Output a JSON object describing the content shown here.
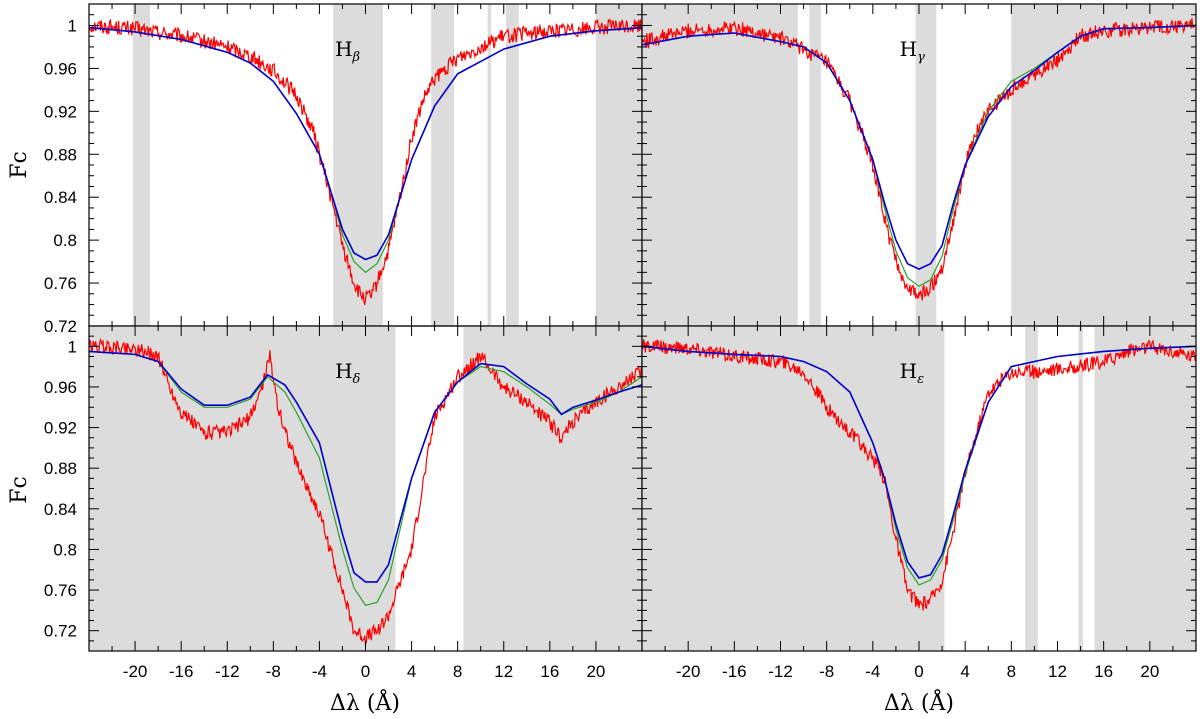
{
  "chart_data": [
    {
      "type": "line",
      "panel": "top-left",
      "label": "H",
      "label_sub": "β",
      "xlim": [
        -24,
        24
      ],
      "ylim": [
        0.72,
        1.02
      ],
      "shaded": [
        [
          -20.2,
          -18.7
        ],
        [
          -2.8,
          1.5
        ],
        [
          5.7,
          7.7
        ],
        [
          10.6,
          10.9
        ],
        [
          12.2,
          13.3
        ],
        [
          20.0,
          24.0
        ]
      ],
      "series": [
        {
          "color": "#ff0000",
          "x": [
            -24,
            -20,
            -16,
            -12,
            -10,
            -8,
            -6,
            -4.5,
            -3,
            -2,
            -1,
            -0.5,
            0,
            0.5,
            1,
            2,
            3,
            4,
            5,
            6,
            8,
            10,
            12,
            16,
            20,
            24
          ],
          "y": [
            1.0,
            0.997,
            0.99,
            0.98,
            0.972,
            0.958,
            0.935,
            0.9,
            0.84,
            0.795,
            0.76,
            0.75,
            0.745,
            0.748,
            0.76,
            0.79,
            0.84,
            0.895,
            0.93,
            0.95,
            0.97,
            0.98,
            0.99,
            0.995,
            0.998,
            1.0
          ]
        },
        {
          "color": "#2ca02c",
          "x": [
            -24,
            -20,
            -16,
            -12,
            -10,
            -8,
            -6,
            -4,
            -3,
            -2,
            -1,
            0,
            1,
            2,
            3,
            4,
            6,
            8,
            12,
            16,
            20,
            24
          ],
          "y": [
            0.998,
            0.994,
            0.987,
            0.975,
            0.965,
            0.948,
            0.918,
            0.88,
            0.845,
            0.805,
            0.78,
            0.77,
            0.778,
            0.8,
            0.84,
            0.875,
            0.925,
            0.955,
            0.978,
            0.99,
            0.995,
            0.998
          ]
        },
        {
          "color": "#0000cc",
          "x": [
            -24,
            -20,
            -16,
            -12,
            -10,
            -8,
            -6,
            -4,
            -3,
            -2,
            -1,
            0,
            1,
            2,
            3,
            4,
            6,
            8,
            12,
            16,
            20,
            24
          ],
          "y": [
            0.998,
            0.994,
            0.987,
            0.975,
            0.965,
            0.948,
            0.918,
            0.88,
            0.845,
            0.81,
            0.788,
            0.782,
            0.786,
            0.805,
            0.84,
            0.875,
            0.925,
            0.955,
            0.978,
            0.99,
            0.995,
            0.998
          ]
        }
      ]
    },
    {
      "type": "line",
      "panel": "top-right",
      "label": "H",
      "label_sub": "γ",
      "xlim": [
        -24,
        24
      ],
      "ylim": [
        0.72,
        1.02
      ],
      "shaded": [
        [
          -24,
          -10.5
        ],
        [
          -9.5,
          -8.5
        ],
        [
          -0.3,
          1.5
        ],
        [
          8.0,
          24.0
        ]
      ],
      "series": [
        {
          "color": "#ff0000",
          "x": [
            -24,
            -20,
            -16,
            -12,
            -10,
            -8,
            -6,
            -4,
            -3,
            -2,
            -1,
            0,
            1,
            2,
            3,
            4,
            5,
            6,
            8,
            10,
            12,
            14,
            16,
            20,
            24
          ],
          "y": [
            0.985,
            0.995,
            0.998,
            0.988,
            0.978,
            0.965,
            0.93,
            0.87,
            0.82,
            0.78,
            0.755,
            0.748,
            0.755,
            0.775,
            0.82,
            0.87,
            0.9,
            0.92,
            0.94,
            0.955,
            0.968,
            0.99,
            0.995,
            0.998,
            1.0
          ]
        },
        {
          "color": "#2ca02c",
          "x": [
            -24,
            -20,
            -16,
            -12,
            -10,
            -8,
            -6,
            -4,
            -3,
            -2,
            -1,
            0,
            1,
            2,
            3,
            4,
            6,
            8,
            10,
            12,
            14,
            16,
            20,
            24
          ],
          "y": [
            0.982,
            0.99,
            0.993,
            0.985,
            0.98,
            0.965,
            0.93,
            0.875,
            0.83,
            0.79,
            0.765,
            0.757,
            0.763,
            0.785,
            0.83,
            0.87,
            0.92,
            0.948,
            0.96,
            0.975,
            0.99,
            0.997,
            0.998,
            1.0
          ]
        },
        {
          "color": "#0000cc",
          "x": [
            -24,
            -20,
            -16,
            -12,
            -10,
            -8,
            -6,
            -4,
            -3,
            -2,
            -1,
            0,
            1,
            2,
            3,
            4,
            6,
            8,
            10,
            12,
            14,
            16,
            20,
            24
          ],
          "y": [
            0.982,
            0.99,
            0.993,
            0.985,
            0.98,
            0.965,
            0.93,
            0.875,
            0.835,
            0.8,
            0.778,
            0.773,
            0.778,
            0.795,
            0.835,
            0.87,
            0.915,
            0.943,
            0.958,
            0.975,
            0.99,
            0.997,
            0.998,
            1.0
          ]
        }
      ]
    },
    {
      "type": "line",
      "panel": "bottom-left",
      "label": "H",
      "label_sub": "δ",
      "xlim": [
        -24,
        24
      ],
      "ylim": [
        0.7,
        1.02
      ],
      "shaded": [
        [
          -24,
          2.6
        ],
        [
          8.5,
          24.0
        ]
      ],
      "series": [
        {
          "color": "#ff0000",
          "x": [
            -24,
            -20,
            -18,
            -17,
            -16,
            -14,
            -12,
            -10,
            -9,
            -8.3,
            -7.5,
            -6,
            -4,
            -2,
            -1,
            0,
            1,
            2,
            4,
            6,
            8,
            10,
            12,
            14,
            16,
            17,
            18,
            20,
            22,
            24
          ],
          "y": [
            1.0,
            0.998,
            0.99,
            0.96,
            0.935,
            0.915,
            0.915,
            0.93,
            0.96,
            0.99,
            0.935,
            0.885,
            0.835,
            0.76,
            0.72,
            0.713,
            0.72,
            0.735,
            0.8,
            0.93,
            0.97,
            0.99,
            0.96,
            0.945,
            0.925,
            0.91,
            0.925,
            0.945,
            0.96,
            0.975
          ]
        },
        {
          "color": "#2ca02c",
          "x": [
            -24,
            -20,
            -18,
            -16,
            -14,
            -12,
            -10,
            -8.5,
            -7,
            -6,
            -4,
            -2,
            -1,
            0,
            1,
            2,
            3,
            4,
            6,
            8,
            10,
            12,
            14,
            16,
            17,
            18,
            20,
            22,
            24
          ],
          "y": [
            0.995,
            0.992,
            0.985,
            0.955,
            0.94,
            0.94,
            0.948,
            0.97,
            0.955,
            0.935,
            0.89,
            0.8,
            0.762,
            0.745,
            0.748,
            0.77,
            0.82,
            0.87,
            0.935,
            0.965,
            0.98,
            0.975,
            0.96,
            0.943,
            0.933,
            0.938,
            0.945,
            0.955,
            0.97
          ]
        },
        {
          "color": "#0000cc",
          "x": [
            -24,
            -20,
            -18,
            -16,
            -14,
            -12,
            -10,
            -8.5,
            -7,
            -6,
            -4,
            -2,
            -1,
            0,
            1,
            2,
            3,
            4,
            6,
            8,
            10,
            12,
            14,
            16,
            17,
            18,
            20,
            22,
            24
          ],
          "y": [
            0.995,
            0.992,
            0.985,
            0.958,
            0.942,
            0.942,
            0.95,
            0.972,
            0.962,
            0.945,
            0.905,
            0.815,
            0.777,
            0.768,
            0.768,
            0.785,
            0.828,
            0.87,
            0.935,
            0.965,
            0.983,
            0.98,
            0.963,
            0.948,
            0.933,
            0.94,
            0.947,
            0.955,
            0.962
          ]
        }
      ]
    },
    {
      "type": "line",
      "panel": "bottom-right",
      "label": "H",
      "label_sub": "ε",
      "xlim": [
        -24,
        24
      ],
      "ylim": [
        0.7,
        1.02
      ],
      "shaded": [
        [
          -24,
          2.2
        ],
        [
          9.2,
          10.3
        ],
        [
          13.8,
          14.2
        ],
        [
          15.2,
          24.0
        ]
      ],
      "series": [
        {
          "color": "#ff0000",
          "x": [
            -24,
            -20,
            -16,
            -12,
            -10,
            -8,
            -6,
            -4,
            -3,
            -2,
            -1,
            0,
            1,
            2,
            3,
            4,
            6,
            8,
            10,
            12,
            14,
            16,
            18,
            20,
            24
          ],
          "y": [
            1.0,
            0.998,
            0.99,
            0.985,
            0.975,
            0.94,
            0.915,
            0.89,
            0.87,
            0.81,
            0.76,
            0.745,
            0.75,
            0.77,
            0.82,
            0.875,
            0.955,
            0.975,
            0.975,
            0.978,
            0.98,
            0.985,
            0.995,
            1.0,
            0.99
          ]
        },
        {
          "color": "#2ca02c",
          "x": [
            -24,
            -20,
            -16,
            -12,
            -10,
            -8,
            -6,
            -4,
            -3,
            -2,
            -1,
            0,
            1,
            2,
            3,
            4,
            6,
            8,
            10,
            12,
            16,
            20,
            24
          ],
          "y": [
            1.0,
            0.995,
            0.992,
            0.99,
            0.985,
            0.975,
            0.955,
            0.905,
            0.87,
            0.82,
            0.782,
            0.765,
            0.77,
            0.79,
            0.83,
            0.875,
            0.945,
            0.98,
            0.985,
            0.99,
            0.995,
            0.998,
            1.0
          ]
        },
        {
          "color": "#0000cc",
          "x": [
            -24,
            -20,
            -16,
            -12,
            -10,
            -8,
            -6,
            -4,
            -3,
            -2,
            -1,
            0,
            1,
            2,
            3,
            4,
            6,
            8,
            10,
            12,
            16,
            20,
            24
          ],
          "y": [
            1.0,
            0.995,
            0.992,
            0.99,
            0.985,
            0.975,
            0.955,
            0.905,
            0.87,
            0.825,
            0.788,
            0.772,
            0.775,
            0.795,
            0.835,
            0.878,
            0.945,
            0.98,
            0.985,
            0.99,
            0.995,
            0.998,
            1.0
          ]
        }
      ]
    }
  ],
  "axes": {
    "x_ticks": [
      -20,
      -16,
      -12,
      -8,
      -4,
      0,
      4,
      8,
      12,
      16,
      20
    ],
    "x_tick_labels": [
      "-20",
      "-16",
      "-12",
      "-8",
      "-4",
      "0",
      "4",
      "8",
      "12",
      "16",
      "20"
    ],
    "y_ticks": [
      0.72,
      0.76,
      0.8,
      0.84,
      0.88,
      0.92,
      0.96,
      1.0
    ],
    "y_tick_labels": [
      "0.72",
      "0.76",
      "0.8",
      "0.84",
      "0.88",
      "0.92",
      "0.96",
      "1"
    ],
    "ylabel": "Fc",
    "xlabel": "Δλ (Å)",
    "shade_color": "#dcdcdc"
  }
}
